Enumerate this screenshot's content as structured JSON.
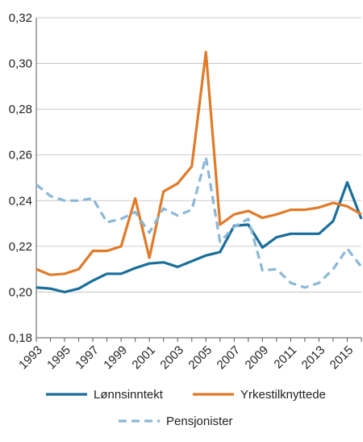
{
  "chart_data": {
    "type": "line",
    "title": "",
    "xlabel": "",
    "ylabel": "",
    "x": [
      1993,
      1994,
      1995,
      1996,
      1997,
      1998,
      1999,
      2000,
      2001,
      2002,
      2003,
      2004,
      2005,
      2006,
      2007,
      2008,
      2009,
      2010,
      2011,
      2012,
      2013,
      2014,
      2015,
      2016
    ],
    "x_tick_labels": [
      "1993",
      "1995",
      "1997",
      "1999",
      "2001",
      "2003",
      "2005",
      "2007",
      "2009",
      "2011",
      "2013",
      "2015"
    ],
    "y_tick_labels": [
      "0,18",
      "0,20",
      "0,22",
      "0,24",
      "0,26",
      "0,28",
      "0,30",
      "0,32"
    ],
    "xlim": [
      1993,
      2016
    ],
    "ylim": [
      0.18,
      0.32
    ],
    "grid": "horizontal",
    "legend_position": "bottom",
    "series": [
      {
        "name": "Lønnsinntekt",
        "color": "#1a6e9a",
        "style": "solid",
        "values": [
          0.202,
          0.2015,
          0.2,
          0.2015,
          0.205,
          0.208,
          0.208,
          0.2105,
          0.2125,
          0.213,
          0.211,
          0.2135,
          0.216,
          0.2175,
          0.229,
          0.2295,
          0.2195,
          0.224,
          0.2255,
          0.2255,
          0.2255,
          0.231,
          0.248,
          0.232
        ]
      },
      {
        "name": "Yrkestilknyttede",
        "color": "#e07b29",
        "style": "solid",
        "values": [
          0.21,
          0.2075,
          0.208,
          0.21,
          0.218,
          0.218,
          0.22,
          0.241,
          0.215,
          0.244,
          0.2475,
          0.255,
          0.305,
          0.2295,
          0.234,
          0.2355,
          0.2325,
          0.234,
          0.236,
          0.236,
          0.237,
          0.239,
          0.2375,
          0.234
        ]
      },
      {
        "name": "Pensjonister",
        "color": "#8bb8d6",
        "style": "dashed",
        "values": [
          0.247,
          0.242,
          0.24,
          0.24,
          0.241,
          0.2305,
          0.232,
          0.235,
          0.226,
          0.2365,
          0.2335,
          0.236,
          0.259,
          0.222,
          0.2285,
          0.232,
          0.2095,
          0.21,
          0.204,
          0.202,
          0.204,
          0.21,
          0.219,
          0.211
        ]
      }
    ]
  }
}
